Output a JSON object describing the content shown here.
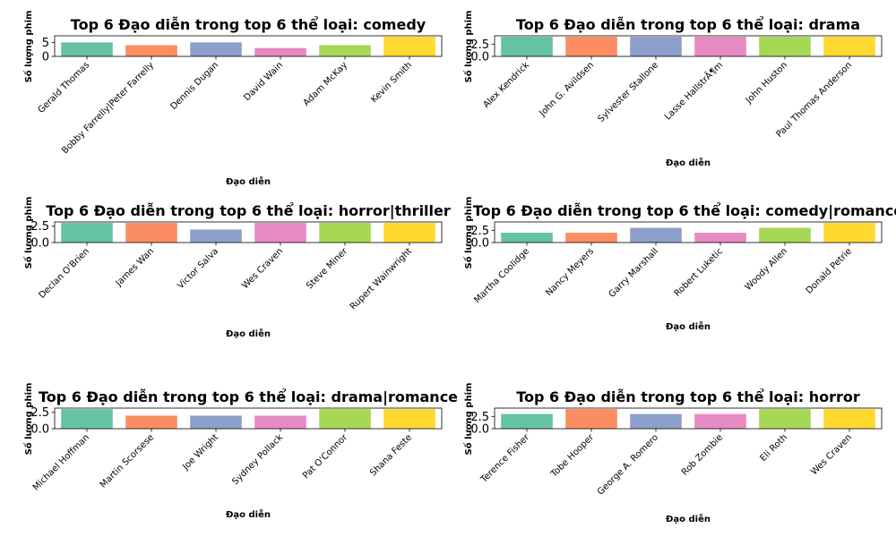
{
  "chart_data": [
    {
      "type": "bar",
      "title": "Top 6 Đạo diễn trong top 6 thể loại: comedy",
      "xlabel": "Đạo diễn",
      "ylabel": "Số lượng phim",
      "categories": [
        "Gerald Thomas",
        "Bobby Farrelly|Peter Farrelly",
        "Dennis Dugan",
        "David Wain",
        "Adam McKay",
        "Kevin Smith"
      ],
      "values": [
        5,
        4,
        5,
        3,
        4,
        7
      ],
      "ylim": [
        0,
        7.35
      ],
      "yticks": [
        0,
        5
      ],
      "ytick_labels": [
        "0",
        "5"
      ]
    },
    {
      "type": "bar",
      "title": "Top 6 Đạo diễn trong top 6 thể loại: drama",
      "xlabel": "Đạo diễn",
      "ylabel": "Số lượng phim",
      "categories": [
        "Alex Kendrick",
        "John G. Avildsen",
        "Sylvester Stallone",
        "Lasse HallstrÃ¶m",
        "John Huston",
        "Paul Thomas Anderson"
      ],
      "values": [
        4,
        4,
        4,
        4,
        4,
        4
      ],
      "ylim": [
        0,
        4.2
      ],
      "yticks": [
        0,
        2.5
      ],
      "ytick_labels": [
        "0.0",
        "2.5"
      ]
    },
    {
      "type": "bar",
      "title": "Top 6 Đạo diễn trong top 6 thể loại: horror|thriller",
      "xlabel": "Đạo diễn",
      "ylabel": "Số lượng phim",
      "categories": [
        "Declan O'Brien",
        "James Wan",
        "Victor Salva",
        "Wes Craven",
        "Steve Miner",
        "Rupert Wainwright"
      ],
      "values": [
        3,
        3,
        2,
        3,
        3,
        3
      ],
      "ylim": [
        0,
        3.15
      ],
      "yticks": [
        0,
        2.5
      ],
      "ytick_labels": [
        "0.0",
        "2.5"
      ]
    },
    {
      "type": "bar",
      "title": "Top 6 Đạo diễn trong top 6 thể loại: comedy|romance",
      "xlabel": "Đạo diễn",
      "ylabel": "Số lượng phim",
      "categories": [
        "Martha Coolidge",
        "Nancy Meyers",
        "Garry Marshall",
        "Robert Luketic",
        "Woody Allen",
        "Donald Petrie"
      ],
      "values": [
        2,
        2,
        3,
        2,
        3,
        4
      ],
      "ylim": [
        0,
        4.2
      ],
      "yticks": [
        0,
        2.5
      ],
      "ytick_labels": [
        "0.0",
        "2.5"
      ]
    },
    {
      "type": "bar",
      "title": "Top 6 Đạo diễn trong top 6 thể loại: drama|romance",
      "xlabel": "Đạo diễn",
      "ylabel": "Số lượng phim",
      "categories": [
        "Michael Hoffman",
        "Martin Scorsese",
        "Joe Wright",
        "Sydney Pollack",
        "Pat O'Connor",
        "Shana Feste"
      ],
      "values": [
        3,
        2,
        2,
        2,
        3,
        3
      ],
      "ylim": [
        0,
        3.15
      ],
      "yticks": [
        0,
        2.5
      ],
      "ytick_labels": [
        "0.0",
        "2.5"
      ]
    },
    {
      "type": "bar",
      "title": "Top 6 Đạo diễn trong top 6 thể loại: horror",
      "xlabel": "Đạo diễn",
      "ylabel": "Số lượng phim",
      "categories": [
        "Terence Fisher",
        "Tobe Hooper",
        "George A. Romero",
        "Rob Zombie",
        "Eli Roth",
        "Wes Craven"
      ],
      "values": [
        3,
        4,
        3,
        3,
        4,
        4
      ],
      "ylim": [
        0,
        4.2
      ],
      "yticks": [
        0,
        2.5
      ],
      "ytick_labels": [
        "0.0",
        "2.5"
      ]
    }
  ],
  "colors": [
    "#66c2a5",
    "#fc8d62",
    "#8da0cb",
    "#e78ac3",
    "#a6d854",
    "#ffd92f"
  ]
}
